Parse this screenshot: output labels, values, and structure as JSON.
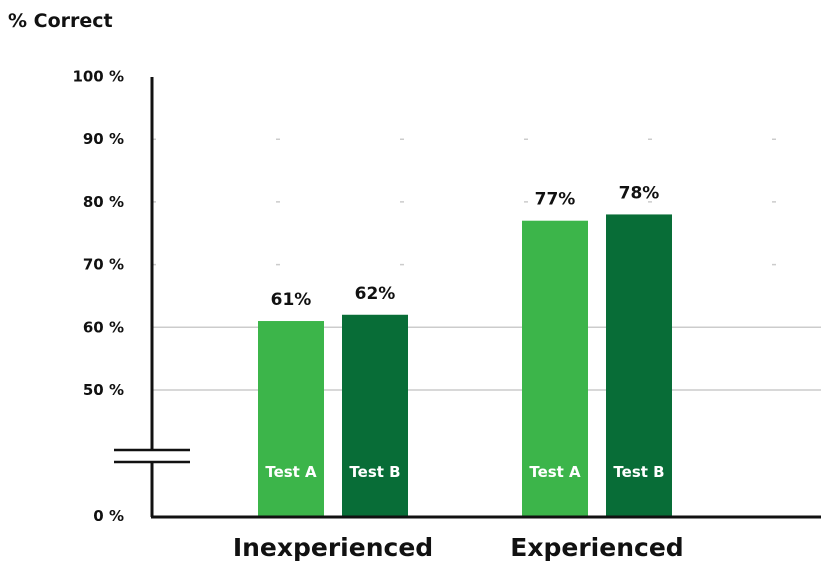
{
  "chart_data": {
    "type": "bar",
    "title": "% Correct",
    "categories": [
      "Inexperienced",
      "Experienced"
    ],
    "series": [
      {
        "name": "Test A",
        "values": [
          61,
          77
        ]
      },
      {
        "name": "Test B",
        "values": [
          62,
          78
        ]
      }
    ],
    "data_labels": [
      [
        "61%",
        "62%"
      ],
      [
        "77%",
        "78%"
      ]
    ],
    "bar_labels": [
      "Test A",
      "Test B"
    ],
    "y_ticks": [
      {
        "value": 0,
        "label": "0 %"
      },
      {
        "value": 50,
        "label": "50 %"
      },
      {
        "value": 60,
        "label": "60 %"
      },
      {
        "value": 70,
        "label": "70 %"
      },
      {
        "value": 80,
        "label": "80 %"
      },
      {
        "value": 90,
        "label": "90 %"
      },
      {
        "value": 100,
        "label": "100 %"
      }
    ],
    "ylim": [
      0,
      100
    ],
    "axis_break": "between 0 and 50",
    "gridlines_at": [
      50,
      60,
      70,
      80,
      90
    ],
    "colors": {
      "Test A": "#3cb54a",
      "Test B": "#086d37",
      "gridline": "#cccccc",
      "axis": "#111111"
    }
  }
}
